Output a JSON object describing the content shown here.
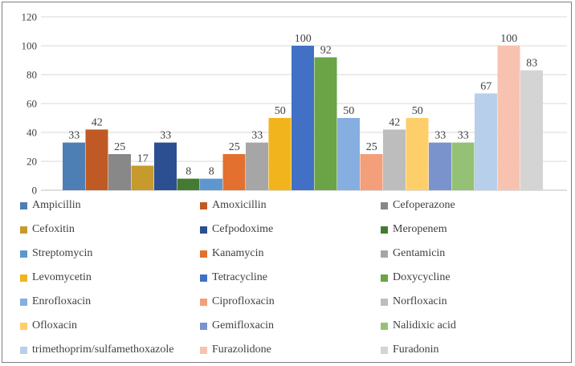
{
  "chart_data": {
    "type": "bar",
    "title": "",
    "xlabel": "",
    "ylabel": "",
    "ylim": [
      0,
      120
    ],
    "yticks": [
      "0",
      "20",
      "40",
      "60",
      "80",
      "100",
      "120"
    ],
    "grid": true,
    "legend_position": "bottom",
    "series": [
      {
        "name": "Ampicillin",
        "value": 33,
        "label": "33",
        "color": "#4e7fb4"
      },
      {
        "name": "Amoxicillin",
        "value": 42,
        "label": "42",
        "color": "#c05a24"
      },
      {
        "name": "Cefoperazone",
        "value": 25,
        "label": "25",
        "color": "#888888"
      },
      {
        "name": "Cefoxitin",
        "value": 17,
        "label": "17",
        "color": "#c79a2e"
      },
      {
        "name": "Cefpodoxime",
        "value": 33,
        "label": "33",
        "color": "#2c4f92"
      },
      {
        "name": "Meropenem",
        "value": 8,
        "label": "8",
        "color": "#457a33"
      },
      {
        "name": "Streptomycin",
        "value": 8,
        "label": "8",
        "color": "#5e97d0"
      },
      {
        "name": "Kanamycin",
        "value": 25,
        "label": "25",
        "color": "#e3702e"
      },
      {
        "name": "Gentamicin",
        "value": 33,
        "label": "33",
        "color": "#a6a6a6"
      },
      {
        "name": "Levomycetin",
        "value": 50,
        "label": "50",
        "color": "#f1b41d"
      },
      {
        "name": "Tetracycline",
        "value": 100,
        "label": "100",
        "color": "#4170c4"
      },
      {
        "name": "Doxycycline",
        "value": 92,
        "label": "92",
        "color": "#6aa446"
      },
      {
        "name": "Enrofloxacin",
        "value": 50,
        "label": "50",
        "color": "#86aee0"
      },
      {
        "name": "Ciprofloxacin",
        "value": 25,
        "label": "25",
        "color": "#f29f7a"
      },
      {
        "name": "Norfloxacin",
        "value": 42,
        "label": "42",
        "color": "#bdbdbd"
      },
      {
        "name": "Ofloxacin",
        "value": 50,
        "label": "50",
        "color": "#fece6b"
      },
      {
        "name": "Gemifloxacin",
        "value": 33,
        "label": "33",
        "color": "#7a93cc"
      },
      {
        "name": "Nalidixic acid",
        "value": 33,
        "label": "33",
        "color": "#95c177"
      },
      {
        "name": "trimethoprim/sulfamethoxazole",
        "value": 67,
        "label": "67",
        "color": "#b7cfea"
      },
      {
        "name": "Furazolidone",
        "value": 100,
        "label": "100",
        "color": "#f7c3b0"
      },
      {
        "name": "Furadonin",
        "value": 83,
        "label": "83",
        "color": "#d4d4d4"
      }
    ]
  }
}
